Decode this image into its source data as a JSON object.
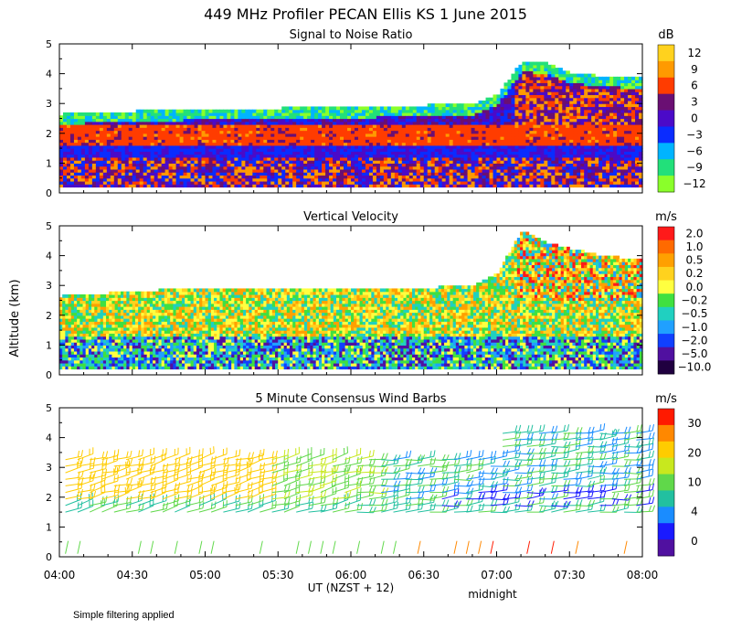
{
  "title": "449 MHz Profiler PECAN Ellis KS  1 June 2015",
  "ylabel": "Altitude (km)",
  "note": "Simple filtering applied",
  "xaxis": {
    "ticks": [
      "04:00",
      "04:30",
      "05:00",
      "05:30",
      "06:00",
      "06:30",
      "07:00",
      "07:30",
      "08:00"
    ],
    "tick_hours": [
      4.0,
      4.5,
      5.0,
      5.5,
      6.0,
      6.5,
      7.0,
      7.5,
      8.0
    ],
    "label": "UT  (NZST + 12)",
    "sublabel": "midnight",
    "range": [
      4.0,
      8.0
    ]
  },
  "chart_data": [
    {
      "type": "heatmap",
      "title": "Signal to Noise Ratio",
      "unit": "dB",
      "ylim": [
        0,
        5
      ],
      "yticks": [
        "0",
        "1",
        "2",
        "3",
        "4",
        "5"
      ],
      "colorbar": {
        "labels": [
          "12",
          "9",
          "6",
          "3",
          "0",
          "−3",
          "−6",
          "−9",
          "−12"
        ],
        "colors": [
          "#ffd21e",
          "#ff9a00",
          "#ff3c00",
          "#6a0f73",
          "#4b0ac8",
          "#0a2cff",
          "#00b4ff",
          "#22e07a",
          "#8aff2a"
        ]
      },
      "data_top_km": [
        2.6,
        2.65,
        2.7,
        2.7,
        2.75,
        2.75,
        2.8,
        2.8,
        2.8,
        2.8,
        2.85,
        2.85,
        2.85,
        2.85,
        2.9,
        2.9,
        2.95,
        2.95,
        3.3,
        4.4,
        4.3,
        4.0,
        3.9,
        3.85,
        3.85
      ]
    },
    {
      "type": "heatmap",
      "title": "Vertical Velocity",
      "unit": "m/s",
      "ylim": [
        0,
        5
      ],
      "yticks": [
        "0",
        "1",
        "2",
        "3",
        "4",
        "5"
      ],
      "colorbar": {
        "labels": [
          "2.0",
          "1.0",
          "0.5",
          "0.2",
          "0.0",
          "−0.2",
          "−0.5",
          "−1.0",
          "−2.0",
          "−5.0",
          "−10.0"
        ],
        "colors": [
          "#ff1a1a",
          "#ff6a00",
          "#ffa000",
          "#ffd21e",
          "#ffff40",
          "#40e040",
          "#20d0c0",
          "#20a0ff",
          "#1040ff",
          "#5010a0",
          "#200040"
        ]
      },
      "data_top_km": [
        2.6,
        2.65,
        2.7,
        2.75,
        2.8,
        2.85,
        2.9,
        2.9,
        2.85,
        2.9,
        2.9,
        2.85,
        2.85,
        2.9,
        2.85,
        2.85,
        2.95,
        2.95,
        3.4,
        4.8,
        4.4,
        4.2,
        4.0,
        3.9,
        3.85
      ]
    },
    {
      "type": "wind_barbs",
      "title": "5 Minute Consensus Wind Barbs",
      "unit": "m/s",
      "ylim": [
        0,
        5
      ],
      "yticks": [
        "0",
        "1",
        "2",
        "3",
        "4",
        "5"
      ],
      "colorbar": {
        "labels": [
          "30",
          "20",
          "10",
          "4",
          "0"
        ],
        "colors": [
          "#ff1a00",
          "#ff8800",
          "#ffcc00",
          "#c8e81e",
          "#60d84a",
          "#22c0a0",
          "#1a8cff",
          "#1a1aff",
          "#5010a0"
        ]
      }
    }
  ]
}
